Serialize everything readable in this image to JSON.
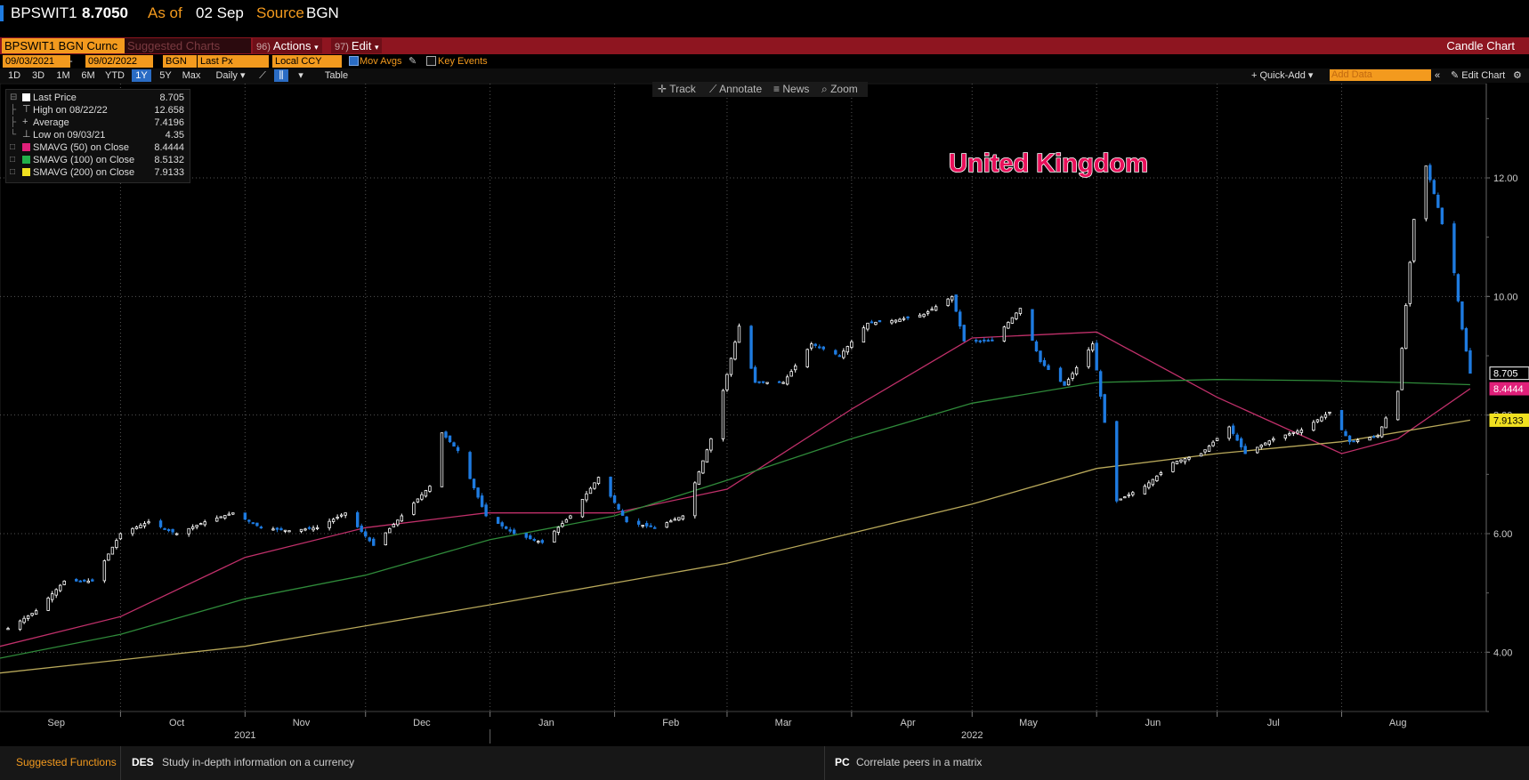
{
  "header": {
    "ticker": "BPSWIT1",
    "price": "8.7050",
    "as_of_label": "As of",
    "as_of_date": "02 Sep",
    "source_label": "Source",
    "source": "BGN"
  },
  "toolbar": {
    "security_field": "BPSWIT1 BGN Curnc",
    "suggested": "Suggested Charts",
    "actions_num": "96)",
    "actions": "Actions",
    "edit_num": "97)",
    "edit": "Edit",
    "chart_type": "Candle Chart"
  },
  "settings": {
    "start_date": "09/03/2021",
    "end_date": "09/02/2022",
    "source": "BGN",
    "field": "Last Px",
    "currency": "Local CCY",
    "mov_avgs": "Mov Avgs",
    "key_events": "Key Events"
  },
  "periods": {
    "items": [
      "1D",
      "3D",
      "1M",
      "6M",
      "YTD",
      "1Y",
      "5Y",
      "Max"
    ],
    "selected": "1Y",
    "frequency": "Daily",
    "table": "Table"
  },
  "right_controls": {
    "quick_add": "+ Quick-Add",
    "add_data": "Add Data",
    "edit_chart": "Edit Chart"
  },
  "chart_tools": {
    "track": "Track",
    "annotate": "Annotate",
    "news": "News",
    "zoom": "Zoom"
  },
  "legend": {
    "rows": [
      {
        "label": "Last Price",
        "value": "8.705",
        "color": "#ffffff"
      },
      {
        "label": "High on 08/22/22",
        "value": "12.658",
        "color": ""
      },
      {
        "label": "Average",
        "value": "7.4196",
        "color": ""
      },
      {
        "label": "Low on 09/03/21",
        "value": "4.35",
        "color": ""
      },
      {
        "label": "SMAVG (50)  on Close",
        "value": "8.4444",
        "color": "#e0207a"
      },
      {
        "label": "SMAVG (100)  on Close",
        "value": "8.5132",
        "color": "#22b04a"
      },
      {
        "label": "SMAVG (200)  on Close",
        "value": "7.9133",
        "color": "#f0e020"
      }
    ]
  },
  "footer": {
    "suggested": "Suggested Functions",
    "f1_code": "DES",
    "f1_text": "Study in-depth information on a currency",
    "f2_code": "PC",
    "f2_text": "Correlate peers in a matrix"
  },
  "colors": {
    "up_candle": "#ffffff",
    "down_candle": "#1e7be0",
    "sma50": "#c0306a",
    "sma100": "#2f8a3a",
    "sma200": "#b8a85a",
    "annotation": "#e8105a"
  },
  "chart_data": {
    "type": "candlestick",
    "annotation": "United Kingdom",
    "ylim": [
      3.0,
      13.5
    ],
    "y_ticks": [
      4.0,
      6.0,
      8.0,
      10.0,
      12.0
    ],
    "y_tick_labels": [
      "4.00",
      "6.00",
      "8.00",
      "10.00",
      "12.00"
    ],
    "x_range": [
      "2021-09-01",
      "2022-09-06"
    ],
    "x_months": [
      {
        "label": "Sep",
        "date": "2021-09-15"
      },
      {
        "label": "Oct",
        "date": "2021-10-15"
      },
      {
        "label": "Nov",
        "date": "2021-11-15"
      },
      {
        "label": "Dec",
        "date": "2021-12-15"
      },
      {
        "label": "Jan",
        "date": "2022-01-15"
      },
      {
        "label": "Feb",
        "date": "2022-02-15"
      },
      {
        "label": "Mar",
        "date": "2022-03-15"
      },
      {
        "label": "Apr",
        "date": "2022-04-15"
      },
      {
        "label": "May",
        "date": "2022-05-15"
      },
      {
        "label": "Jun",
        "date": "2022-06-15"
      },
      {
        "label": "Jul",
        "date": "2022-07-15"
      },
      {
        "label": "Aug",
        "date": "2022-08-15"
      }
    ],
    "x_years": [
      {
        "label": "2021",
        "date": "2021-11-01"
      },
      {
        "label": "2022",
        "date": "2022-05-01"
      }
    ],
    "grid": true,
    "legend_position": "top-left",
    "price_labels": [
      {
        "label": "8.705",
        "value": 8.705,
        "color": "#ffffff"
      },
      {
        "label": "8.4444",
        "value": 8.4444,
        "color": "#e0207a"
      },
      {
        "label": "7.9133",
        "value": 7.9133,
        "color": "#f0e020"
      }
    ],
    "close_anchors": [
      [
        "2021-09-03",
        4.4
      ],
      [
        "2021-09-10",
        4.7
      ],
      [
        "2021-09-17",
        5.2
      ],
      [
        "2021-09-24",
        5.2
      ],
      [
        "2021-10-01",
        6.0
      ],
      [
        "2021-10-08",
        6.2
      ],
      [
        "2021-10-15",
        6.0
      ],
      [
        "2021-10-22",
        6.2
      ],
      [
        "2021-10-29",
        6.35
      ],
      [
        "2021-11-05",
        6.1
      ],
      [
        "2021-11-12",
        6.05
      ],
      [
        "2021-11-19",
        6.1
      ],
      [
        "2021-11-26",
        6.35
      ],
      [
        "2021-12-03",
        5.8
      ],
      [
        "2021-12-10",
        6.3
      ],
      [
        "2021-12-17",
        6.8
      ],
      [
        "2021-12-20",
        7.7
      ],
      [
        "2021-12-24",
        7.4
      ],
      [
        "2021-12-31",
        6.3
      ],
      [
        "2022-01-07",
        6.0
      ],
      [
        "2022-01-14",
        5.85
      ],
      [
        "2022-01-21",
        6.3
      ],
      [
        "2022-01-28",
        6.95
      ],
      [
        "2022-02-04",
        6.2
      ],
      [
        "2022-02-11",
        6.1
      ],
      [
        "2022-02-18",
        6.3
      ],
      [
        "2022-02-25",
        7.6
      ],
      [
        "2022-03-04",
        9.5
      ],
      [
        "2022-03-08",
        8.55
      ],
      [
        "2022-03-15",
        8.55
      ],
      [
        "2022-03-22",
        9.2
      ],
      [
        "2022-03-29",
        9.0
      ],
      [
        "2022-04-05",
        9.55
      ],
      [
        "2022-04-12",
        9.6
      ],
      [
        "2022-04-19",
        9.7
      ],
      [
        "2022-04-26",
        10.0
      ],
      [
        "2022-04-29",
        9.25
      ],
      [
        "2022-05-06",
        9.25
      ],
      [
        "2022-05-13",
        9.8
      ],
      [
        "2022-05-18",
        8.9
      ],
      [
        "2022-05-24",
        8.5
      ],
      [
        "2022-05-31",
        9.2
      ],
      [
        "2022-06-06",
        6.55
      ],
      [
        "2022-06-13",
        6.8
      ],
      [
        "2022-06-20",
        7.2
      ],
      [
        "2022-06-27",
        7.35
      ],
      [
        "2022-07-04",
        7.8
      ],
      [
        "2022-07-08",
        7.35
      ],
      [
        "2022-07-15",
        7.6
      ],
      [
        "2022-07-22",
        7.75
      ],
      [
        "2022-07-29",
        8.05
      ],
      [
        "2022-08-03",
        7.55
      ],
      [
        "2022-08-10",
        7.65
      ],
      [
        "2022-08-15",
        8.4
      ],
      [
        "2022-08-19",
        11.3
      ],
      [
        "2022-08-22",
        12.2
      ],
      [
        "2022-08-25",
        11.5
      ],
      [
        "2022-08-29",
        10.4
      ],
      [
        "2022-08-31",
        9.45
      ],
      [
        "2022-09-02",
        8.705
      ]
    ],
    "series": [
      {
        "name": "SMAVG (50)  on Close",
        "points": [
          [
            "2021-09-01",
            4.1
          ],
          [
            "2021-10-01",
            4.6
          ],
          [
            "2021-11-01",
            5.6
          ],
          [
            "2021-12-01",
            6.1
          ],
          [
            "2021-12-31",
            6.35
          ],
          [
            "2022-02-01",
            6.35
          ],
          [
            "2022-03-01",
            6.75
          ],
          [
            "2022-04-01",
            8.1
          ],
          [
            "2022-05-01",
            9.3
          ],
          [
            "2022-06-01",
            9.4
          ],
          [
            "2022-07-01",
            8.3
          ],
          [
            "2022-08-01",
            7.35
          ],
          [
            "2022-08-15",
            7.6
          ],
          [
            "2022-09-02",
            8.4444
          ]
        ]
      },
      {
        "name": "SMAVG (100)  on Close",
        "points": [
          [
            "2021-09-01",
            3.9
          ],
          [
            "2021-10-01",
            4.3
          ],
          [
            "2021-11-01",
            4.9
          ],
          [
            "2021-12-01",
            5.3
          ],
          [
            "2022-01-01",
            5.9
          ],
          [
            "2022-02-01",
            6.3
          ],
          [
            "2022-03-01",
            6.9
          ],
          [
            "2022-04-01",
            7.6
          ],
          [
            "2022-05-01",
            8.2
          ],
          [
            "2022-06-01",
            8.55
          ],
          [
            "2022-07-01",
            8.6
          ],
          [
            "2022-07-28",
            8.58
          ],
          [
            "2022-08-15",
            8.55
          ],
          [
            "2022-09-02",
            8.5132
          ]
        ]
      },
      {
        "name": "SMAVG (200)  on Close",
        "points": [
          [
            "2021-09-01",
            3.65
          ],
          [
            "2021-11-01",
            4.1
          ],
          [
            "2022-01-01",
            4.8
          ],
          [
            "2022-03-01",
            5.5
          ],
          [
            "2022-05-01",
            6.5
          ],
          [
            "2022-06-01",
            7.1
          ],
          [
            "2022-07-01",
            7.35
          ],
          [
            "2022-08-01",
            7.55
          ],
          [
            "2022-09-02",
            7.9133
          ]
        ]
      }
    ]
  }
}
